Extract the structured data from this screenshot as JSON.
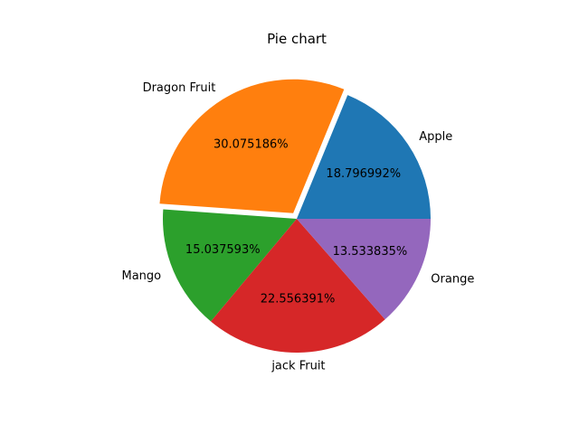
{
  "chart_data": {
    "type": "pie",
    "title": "Pie chart",
    "categories": [
      "Apple",
      "Dragon Fruit",
      "Mango",
      "jack Fruit",
      "Orange"
    ],
    "values": [
      25,
      40,
      20,
      30,
      18
    ],
    "percent_labels": [
      "18.796992%",
      "30.075186%",
      "15.037593%",
      "22.556391%",
      "13.533835%"
    ],
    "colors": [
      "#1f77b4",
      "#ff7f0e",
      "#2ca02c",
      "#d62728",
      "#9467bd"
    ],
    "explode": [
      0,
      0.05,
      0,
      0,
      0
    ],
    "start_angle_deg": 0,
    "direction": "counterclockwise",
    "legend": "none"
  }
}
